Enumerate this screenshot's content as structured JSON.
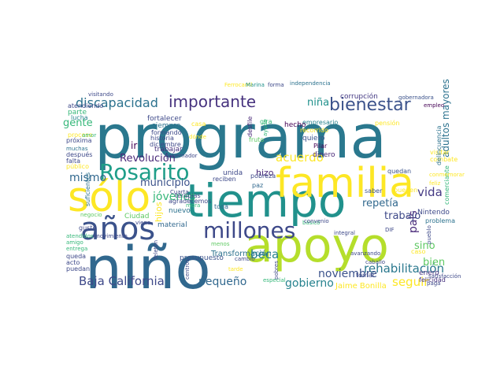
{
  "cloud": {
    "words": [
      {
        "text": "programa",
        "color": "#2a788e"
      },
      {
        "text": "apoyo",
        "color": "#b5de2b"
      },
      {
        "text": "niño",
        "color": "#31688e"
      },
      {
        "text": "tiempo",
        "color": "#21918c"
      },
      {
        "text": "familia",
        "color": "#fde725"
      },
      {
        "text": "sólo",
        "color": "#fde725"
      },
      {
        "text": "Rosarito",
        "color": "#1f9e89"
      },
      {
        "text": "años",
        "color": "#3b528b"
      },
      {
        "text": "importante",
        "color": "#46327e"
      },
      {
        "text": "bienestar",
        "color": "#3b528b"
      },
      {
        "text": "millones",
        "color": "#3e4989"
      },
      {
        "text": "Baja California",
        "color": "#3e4989"
      },
      {
        "text": "discapacidad",
        "color": "#2c728e"
      },
      {
        "text": "rehabilitación",
        "color": "#2a788e"
      },
      {
        "text": "niña",
        "color": "#21918c"
      },
      {
        "text": "beca",
        "color": "#26828e"
      },
      {
        "text": "repetía",
        "color": "#31688e"
      },
      {
        "text": "país",
        "color": "#482878"
      },
      {
        "text": "vida",
        "color": "#443983"
      },
      {
        "text": "noviembre",
        "color": "#3b528b"
      },
      {
        "text": "acuerdo",
        "color": "#fde725"
      },
      {
        "text": "pequeño",
        "color": "#31688e"
      },
      {
        "text": "gobierno",
        "color": "#26828e"
      },
      {
        "text": "seguir",
        "color": "#fde725"
      },
      {
        "text": "bien",
        "color": "#5ec962"
      },
      {
        "text": "sino",
        "color": "#5ec962"
      },
      {
        "text": "trabajo",
        "color": "#3e4989"
      },
      {
        "text": "Revolución",
        "color": "#482878"
      },
      {
        "text": "jóvenes",
        "color": "#35b779"
      },
      {
        "text": "municipio",
        "color": "#3b528b"
      },
      {
        "text": "mismo",
        "color": "#31688e"
      },
      {
        "text": "gente",
        "color": "#35b779"
      },
      {
        "text": "Transformación",
        "color": "#2c728e"
      },
      {
        "text": "adultos mayores",
        "color": "#2c728e"
      },
      {
        "text": "ir",
        "color": "#440154"
      },
      {
        "text": "hijos",
        "color": "#fde725"
      },
      {
        "text": "Jaime Bonilla",
        "color": "#fde725"
      },
      {
        "text": "enero",
        "color": "#46327e"
      },
      {
        "text": "nuevo",
        "color": "#2c728e"
      },
      {
        "text": "Nintendo",
        "color": "#3e4989"
      },
      {
        "text": "presupuesto",
        "color": "#3b528b"
      },
      {
        "text": "unida",
        "color": "#3e4989"
      },
      {
        "text": "hizo",
        "color": "#482878"
      },
      {
        "text": "siempre",
        "color": "#2c728e"
      },
      {
        "text": "trabajar",
        "color": "#46327e"
      },
      {
        "text": "Ciudad",
        "color": "#5ec962"
      },
      {
        "text": "material",
        "color": "#31688e"
      },
      {
        "text": "corrupción",
        "color": "#443983"
      },
      {
        "text": "empresario",
        "color": "#26828e"
      },
      {
        "text": "Pilar",
        "color": "#440154"
      },
      {
        "text": "dinero",
        "color": "#482878"
      },
      {
        "text": "quiero",
        "color": "#3b528b"
      },
      {
        "text": "hecho",
        "color": "#440154"
      },
      {
        "text": "toda",
        "color": "#31688e"
      },
      {
        "text": "pueden",
        "color": "#fde725"
      },
      {
        "text": "saber",
        "color": "#3b528b"
      },
      {
        "text": "quedan",
        "color": "#3b528b"
      },
      {
        "text": "feliz",
        "color": "#fde725"
      },
      {
        "text": "felicidad",
        "color": "#46327e"
      },
      {
        "text": "problema",
        "color": "#2c728e"
      },
      {
        "text": "fortalecer",
        "color": "#3e4989"
      },
      {
        "text": "atendiendo",
        "color": "#3e4989"
      },
      {
        "text": "parte",
        "color": "#35b779"
      },
      {
        "text": "visitando",
        "color": "#3e4989"
      },
      {
        "text": "independencia",
        "color": "#2c728e"
      },
      {
        "text": "gobernadora",
        "color": "#3b528b"
      },
      {
        "text": "empleo",
        "color": "#440154"
      },
      {
        "text": "Ferrocarril",
        "color": "#fde725"
      },
      {
        "text": "Marina",
        "color": "#21918c"
      },
      {
        "text": "forma",
        "color": "#3e4989"
      },
      {
        "text": "recorrido",
        "color": "#fde725"
      },
      {
        "text": "pensión",
        "color": "#fde725"
      },
      {
        "text": "visitar",
        "color": "#fde725"
      },
      {
        "text": "combate",
        "color": "#fde725"
      },
      {
        "text": "delincuencia",
        "color": "#2c728e"
      },
      {
        "text": "comerciante",
        "color": "#35b779"
      },
      {
        "text": "suficientes",
        "color": "#2c728e"
      },
      {
        "text": "lucha",
        "color": "#26828e"
      },
      {
        "text": "proceso",
        "color": "#fde725"
      },
      {
        "text": "próxima",
        "color": "#3e4989"
      },
      {
        "text": "formando",
        "color": "#3e4989"
      },
      {
        "text": "historia",
        "color": "#3e4989"
      },
      {
        "text": "diciembre",
        "color": "#3e4989"
      },
      {
        "text": "amor",
        "color": "#35b779"
      },
      {
        "text": "casa",
        "color": "#fde725"
      },
      {
        "text": "dónde",
        "color": "#fde725"
      },
      {
        "text": "desfile",
        "color": "#482878"
      },
      {
        "text": "ayuda",
        "color": "#35b779"
      },
      {
        "text": "gira",
        "color": "#35b779"
      },
      {
        "text": "fruto",
        "color": "#5ec962"
      },
      {
        "text": "muchas",
        "color": "#2c728e"
      },
      {
        "text": "después",
        "color": "#3e4989"
      },
      {
        "text": "falta",
        "color": "#3e4989"
      },
      {
        "text": "público",
        "color": "#fde725"
      },
      {
        "text": "gobernador",
        "color": "#3e4989"
      },
      {
        "text": "reciben",
        "color": "#3e4989"
      },
      {
        "text": "pobreza",
        "color": "#3e4989"
      },
      {
        "text": "paz",
        "color": "#31688e"
      },
      {
        "text": "terapias",
        "color": "#3e4989"
      },
      {
        "text": "agradecemos",
        "color": "#3e4989"
      },
      {
        "text": "Cuarta",
        "color": "#3e4989"
      },
      {
        "text": "mora",
        "color": "#35b779"
      },
      {
        "text": "negocio",
        "color": "#5ec962"
      },
      {
        "text": "viene",
        "color": "#3e4989"
      },
      {
        "text": "gusto",
        "color": "#3e4989"
      },
      {
        "text": "atendidos",
        "color": "#35b779"
      },
      {
        "text": "movimiento",
        "color": "#3e4989"
      },
      {
        "text": "amigo",
        "color": "#35b779"
      },
      {
        "text": "entrega",
        "color": "#35b779"
      },
      {
        "text": "queda",
        "color": "#3e4989"
      },
      {
        "text": "acto",
        "color": "#3e4989"
      },
      {
        "text": "puedan",
        "color": "#3e4989"
      },
      {
        "text": "Teletón",
        "color": "#3e4989"
      },
      {
        "text": "centros",
        "color": "#3e4989"
      },
      {
        "text": "cambio",
        "color": "#3e4989"
      },
      {
        "text": "menos",
        "color": "#5ec962"
      },
      {
        "text": "tarde",
        "color": "#fde725"
      },
      {
        "text": "pobres",
        "color": "#3e4989"
      },
      {
        "text": "especial",
        "color": "#35b779"
      },
      {
        "text": "básico",
        "color": "#35b779"
      },
      {
        "text": "integral",
        "color": "#3e4989"
      },
      {
        "text": "DIF",
        "color": "#3e4989"
      },
      {
        "text": "caballo",
        "color": "#3e4989"
      },
      {
        "text": "tomar",
        "color": "#3e4989"
      },
      {
        "text": "avanzando",
        "color": "#3e4989"
      },
      {
        "text": "conmemorar",
        "color": "#fde725"
      },
      {
        "text": "caso",
        "color": "#fde725"
      },
      {
        "text": "pueblo",
        "color": "#3e4989"
      },
      {
        "text": "satisfacción",
        "color": "#3e4989"
      },
      {
        "text": "paga",
        "color": "#3e4989"
      },
      {
        "text": "convenio",
        "color": "#3e4989"
      },
      {
        "text": "ir",
        "color": "#3e4989"
      }
    ]
  }
}
